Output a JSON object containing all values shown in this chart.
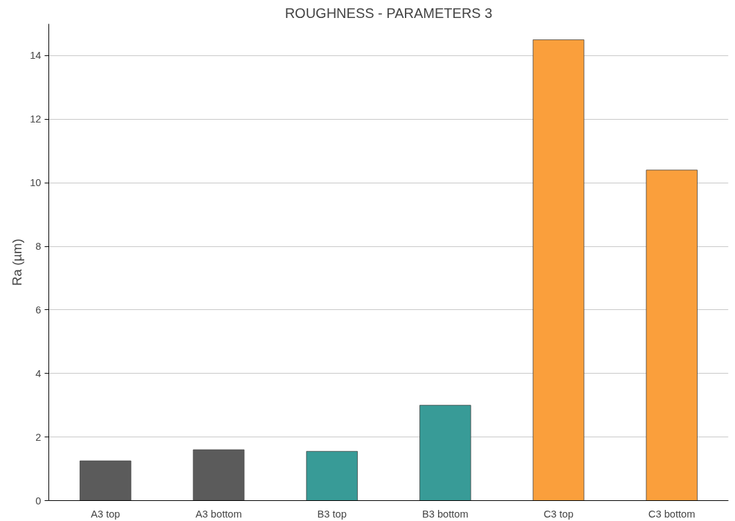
{
  "chart_data": {
    "type": "bar",
    "title": "ROUGHNESS - PARAMETERS 3",
    "ylabel": "Ra (µm)",
    "categories": [
      "A3 top",
      "A3 bottom",
      "B3 top",
      "B3 bottom",
      "C3 top",
      "C3 bottom"
    ],
    "values": [
      1.25,
      1.6,
      1.55,
      3.0,
      14.5,
      10.4
    ],
    "colors": [
      "#5b5b5b",
      "#5b5b5b",
      "#389b97",
      "#389b97",
      "#fa9f3c",
      "#fa9f3c"
    ],
    "ylim": [
      0,
      15
    ],
    "yticks": [
      0,
      2,
      4,
      6,
      8,
      10,
      12,
      14
    ],
    "grid": "y"
  }
}
